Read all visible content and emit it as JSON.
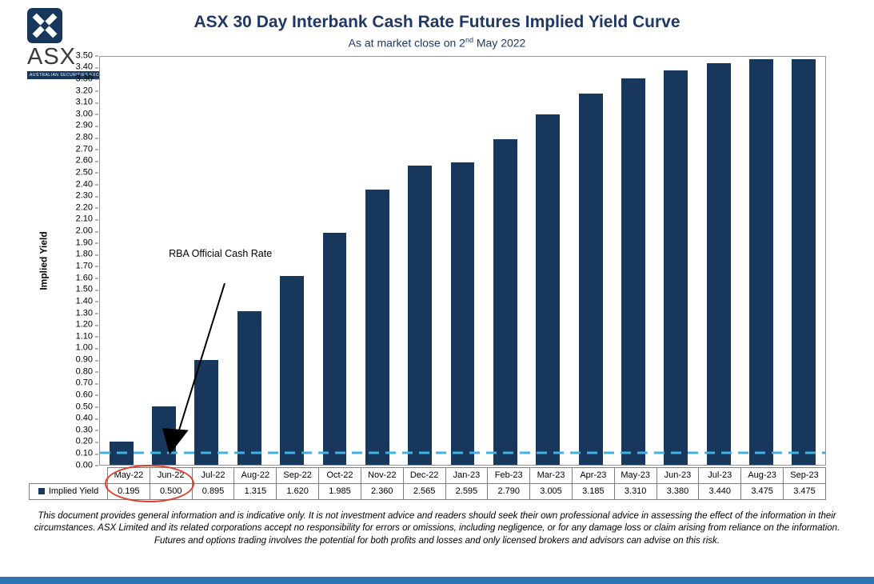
{
  "logo": {
    "text": "ASX",
    "caption": "AUSTRALIAN SECURITIES EXCHANGE"
  },
  "header": {
    "subtitle_prefix": "As at market close on 2",
    "subtitle_sup": "nd",
    "subtitle_suffix": " May 2022"
  },
  "chart_data": {
    "type": "bar",
    "title": "ASX 30 Day Interbank Cash Rate Futures Implied Yield Curve",
    "subtitle": "As at market close on 2nd May 2022",
    "categories": [
      "May-22",
      "Jun-22",
      "Jul-22",
      "Aug-22",
      "Sep-22",
      "Oct-22",
      "Nov-22",
      "Dec-22",
      "Jan-23",
      "Feb-23",
      "Mar-23",
      "Apr-23",
      "May-23",
      "Jun-23",
      "Jul-23",
      "Aug-23",
      "Sep-23"
    ],
    "values": [
      0.195,
      0.5,
      0.895,
      1.315,
      1.62,
      1.985,
      2.36,
      2.565,
      2.595,
      2.79,
      3.005,
      3.185,
      3.31,
      3.38,
      3.44,
      3.475,
      3.475
    ],
    "xlabel": "",
    "ylabel": "Implied Yield",
    "ylim": [
      0,
      3.5
    ],
    "ytick_step": 0.1,
    "grid": false,
    "bar_color": "#17375D",
    "legend": [
      {
        "label": "Implied Yield",
        "color": "#17375D"
      }
    ],
    "reference_line": {
      "value": 0.1,
      "color": "#41B0E4",
      "style": "dashed",
      "label": "RBA Official Cash Rate"
    },
    "highlight": {
      "shape": "red-ellipse",
      "color": "#E23C2B",
      "circled_categories": [
        "May-22",
        "Jun-22"
      ],
      "circled_values": [
        "0.195",
        "0.500"
      ]
    }
  },
  "table": {
    "legend_label": "Implied Yield",
    "values": [
      "0.195",
      "0.500",
      "0.895",
      "1.315",
      "1.620",
      "1.985",
      "2.360",
      "2.565",
      "2.595",
      "2.790",
      "3.005",
      "3.185",
      "3.310",
      "3.380",
      "3.440",
      "3.475",
      "3.475"
    ]
  },
  "footer": {
    "disclaimer": "This document provides general information and is indicative only. It is not investment advice and readers should seek their own professional advice in assessing the effect of the information in their circumstances. ASX Limited and its related corporations accept no responsibility for errors or omissions, including negligence, or for any damage loss or claim arising from reliance on the information. Futures and options trading involves the potential for both profits and losses and only licensed brokers and advisors can advise on this risk."
  }
}
